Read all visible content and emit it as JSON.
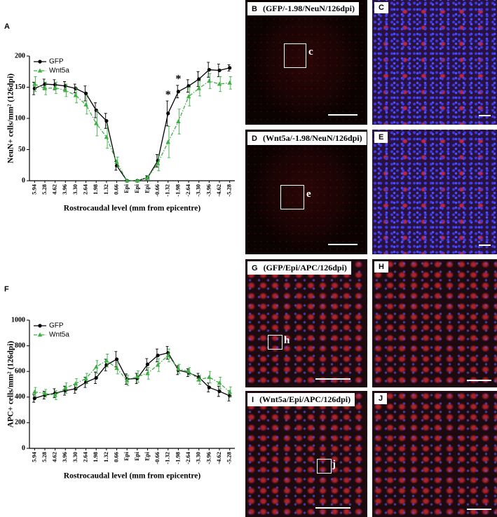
{
  "chart_data": [
    {
      "type": "line",
      "label": "A",
      "y_label": "NeuN+ cells/mm² (126dpi)",
      "x_label": "Rostrocaudal level (mm from epicentre)",
      "categories": [
        "5.94",
        "5.28",
        "4.62",
        "3.96",
        "3.30",
        "2.64",
        "1.98",
        "1.32",
        "0.66",
        "Epi",
        "Epi",
        "Epi",
        "-0.66",
        "-1.32",
        "-1.98",
        "-2.64",
        "-3.30",
        "-3.96",
        "-4.62",
        "-5.28"
      ],
      "ylim": [
        0,
        200
      ],
      "yticks": [
        0,
        50,
        100,
        150,
        200
      ],
      "legend": "upper left",
      "series": [
        {
          "name": "GFP",
          "color": "#000000",
          "line_style": "solid",
          "marker": "circle",
          "values": [
            148,
            155,
            154,
            152,
            148,
            140,
            113,
            96,
            24,
            0,
            0,
            5,
            32,
            108,
            143,
            152,
            163,
            178,
            177,
            181
          ],
          "errors": [
            10,
            8,
            8,
            7,
            7,
            12,
            12,
            12,
            7,
            0,
            0,
            3,
            10,
            20,
            10,
            10,
            12,
            12,
            10,
            5
          ]
        },
        {
          "name": "Wnt5a",
          "color": "#3cb043",
          "line_style": "dash-dot",
          "marker": "triangle",
          "values": [
            155,
            148,
            149,
            145,
            137,
            122,
            92,
            70,
            30,
            0,
            0,
            5,
            28,
            62,
            95,
            135,
            148,
            160,
            155,
            157
          ],
          "errors": [
            12,
            10,
            9,
            10,
            12,
            15,
            20,
            18,
            8,
            0,
            0,
            3,
            12,
            25,
            20,
            15,
            12,
            12,
            12,
            10
          ]
        }
      ],
      "annotations": [
        {
          "text": "*",
          "x": "-1.32"
        },
        {
          "text": "*",
          "x": "-1.98"
        }
      ]
    },
    {
      "type": "line",
      "label": "F",
      "y_label": "APC+ cells/mm² (126dpi)",
      "x_label": "Rostrocaudal level (mm from epicentre)",
      "categories": [
        "5.94",
        "5.28",
        "4.62",
        "3.96",
        "3.30",
        "2.64",
        "1.98",
        "1.32",
        "0.66",
        "Epi",
        "Epi",
        "Epi",
        "-0.66",
        "-1.32",
        "-1.98",
        "-2.64",
        "-3.30",
        "-3.96",
        "-4.62",
        "-5.28"
      ],
      "ylim": [
        0,
        1000
      ],
      "yticks": [
        0,
        200,
        400,
        600,
        800,
        1000
      ],
      "legend": "upper left",
      "series": [
        {
          "name": "GFP",
          "color": "#000000",
          "line_style": "solid",
          "marker": "circle",
          "values": [
            390,
            415,
            430,
            450,
            465,
            515,
            550,
            650,
            695,
            540,
            545,
            655,
            725,
            745,
            610,
            590,
            555,
            475,
            445,
            410
          ],
          "errors": [
            30,
            30,
            35,
            35,
            35,
            40,
            45,
            45,
            60,
            40,
            40,
            45,
            50,
            50,
            35,
            30,
            30,
            35,
            40,
            40
          ]
        },
        {
          "name": "Wnt5a",
          "color": "#3cb043",
          "line_style": "dash-dot",
          "marker": "triangle",
          "values": [
            440,
            430,
            415,
            470,
            505,
            545,
            635,
            685,
            625,
            530,
            560,
            585,
            650,
            725,
            620,
            600,
            535,
            555,
            510,
            440
          ],
          "errors": [
            35,
            30,
            35,
            40,
            40,
            40,
            50,
            50,
            45,
            40,
            45,
            45,
            50,
            50,
            35,
            30,
            35,
            45,
            45,
            40
          ]
        }
      ],
      "annotations": []
    }
  ],
  "panels": [
    {
      "label": "B",
      "title": "(GFP/-1.98/NeuN/126dpi)",
      "box": "c"
    },
    {
      "label": "C"
    },
    {
      "label": "D",
      "title": "(Wnt5a/-1.98/NeuN/126dpi)",
      "box": "e"
    },
    {
      "label": "E"
    },
    {
      "label": "G",
      "title": "(GFP/Epi/APC/126dpi)",
      "box": "h"
    },
    {
      "label": "H"
    },
    {
      "label": "I",
      "title": "(Wnt5a/Epi/APC/126dpi)",
      "box": "j"
    },
    {
      "label": "J"
    }
  ]
}
